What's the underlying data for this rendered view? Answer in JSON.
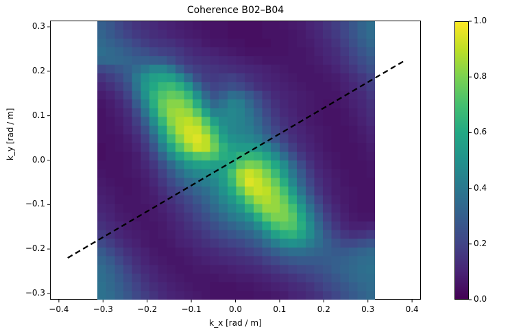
{
  "chart_data": {
    "type": "heatmap",
    "title": "Coherence B02–B04",
    "xlabel": "k_x [rad / m]",
    "ylabel": "k_y [rad / m]",
    "xlim": [
      -0.42,
      0.42
    ],
    "ylim": [
      -0.314,
      0.314
    ],
    "x_ticks": [
      "−0.4",
      "−0.3",
      "−0.2",
      "−0.1",
      "0.0",
      "0.1",
      "0.2",
      "0.3",
      "0.4"
    ],
    "x_tick_values": [
      -0.4,
      -0.3,
      -0.2,
      -0.1,
      0.0,
      0.1,
      0.2,
      0.3,
      0.4
    ],
    "y_ticks": [
      "0.3",
      "0.2",
      "0.1",
      "0.0",
      "−0.1",
      "−0.2",
      "−0.3"
    ],
    "y_tick_values": [
      0.3,
      0.2,
      0.1,
      0.0,
      -0.1,
      -0.2,
      -0.3
    ],
    "extent": [
      -0.314,
      0.314,
      -0.314,
      0.314
    ],
    "grid_size": [
      32,
      32
    ],
    "colormap": "viridis",
    "colorbar": {
      "range": [
        0.0,
        1.0
      ],
      "ticks": [
        "1.0",
        "0.8",
        "0.6",
        "0.4",
        "0.2",
        "0.0"
      ],
      "tick_values": [
        1.0,
        0.8,
        0.6,
        0.4,
        0.2,
        0.0
      ]
    },
    "line": {
      "style": "dashed",
      "color": "#000000",
      "x": [
        -0.38,
        0.38
      ],
      "y": [
        -0.22,
        0.222
      ]
    },
    "lobes": [
      {
        "center_kx": -0.065,
        "center_ky": 0.035,
        "peak": 0.95
      },
      {
        "center_kx": 0.06,
        "center_ky": -0.045,
        "peak": 0.93
      }
    ],
    "values_rows_top_to_bottom": [
      [
        0.3,
        0.27,
        0.22,
        0.18,
        0.15,
        0.13,
        0.12,
        0.1,
        0.09,
        0.08,
        0.07,
        0.06,
        0.05,
        0.05,
        0.05,
        0.04,
        0.04,
        0.04,
        0.04,
        0.05,
        0.05,
        0.06,
        0.07,
        0.08,
        0.1,
        0.12,
        0.15,
        0.18,
        0.22,
        0.27,
        0.32,
        0.36
      ],
      [
        0.32,
        0.28,
        0.24,
        0.2,
        0.17,
        0.15,
        0.13,
        0.12,
        0.1,
        0.09,
        0.08,
        0.07,
        0.06,
        0.05,
        0.05,
        0.04,
        0.04,
        0.04,
        0.04,
        0.05,
        0.05,
        0.05,
        0.06,
        0.07,
        0.09,
        0.11,
        0.14,
        0.17,
        0.21,
        0.26,
        0.31,
        0.35
      ],
      [
        0.34,
        0.31,
        0.28,
        0.25,
        0.21,
        0.18,
        0.16,
        0.15,
        0.14,
        0.12,
        0.1,
        0.09,
        0.07,
        0.06,
        0.06,
        0.05,
        0.05,
        0.04,
        0.04,
        0.04,
        0.05,
        0.05,
        0.06,
        0.07,
        0.08,
        0.1,
        0.12,
        0.15,
        0.19,
        0.24,
        0.29,
        0.33
      ],
      [
        0.36,
        0.34,
        0.32,
        0.29,
        0.26,
        0.24,
        0.21,
        0.19,
        0.18,
        0.16,
        0.13,
        0.11,
        0.1,
        0.09,
        0.08,
        0.07,
        0.06,
        0.05,
        0.05,
        0.05,
        0.05,
        0.05,
        0.06,
        0.06,
        0.07,
        0.09,
        0.11,
        0.13,
        0.17,
        0.21,
        0.26,
        0.3
      ],
      [
        0.33,
        0.34,
        0.33,
        0.32,
        0.3,
        0.3,
        0.29,
        0.28,
        0.24,
        0.19,
        0.16,
        0.14,
        0.13,
        0.12,
        0.11,
        0.1,
        0.09,
        0.08,
        0.07,
        0.06,
        0.06,
        0.06,
        0.06,
        0.06,
        0.07,
        0.08,
        0.1,
        0.12,
        0.15,
        0.19,
        0.23,
        0.27
      ],
      [
        0.22,
        0.24,
        0.27,
        0.3,
        0.35,
        0.4,
        0.45,
        0.45,
        0.4,
        0.3,
        0.22,
        0.18,
        0.16,
        0.15,
        0.14,
        0.13,
        0.12,
        0.11,
        0.1,
        0.09,
        0.08,
        0.07,
        0.06,
        0.06,
        0.06,
        0.07,
        0.08,
        0.1,
        0.13,
        0.16,
        0.2,
        0.24
      ],
      [
        0.15,
        0.18,
        0.22,
        0.28,
        0.4,
        0.5,
        0.56,
        0.58,
        0.56,
        0.48,
        0.36,
        0.24,
        0.18,
        0.17,
        0.18,
        0.19,
        0.17,
        0.14,
        0.12,
        0.1,
        0.09,
        0.08,
        0.07,
        0.06,
        0.06,
        0.06,
        0.07,
        0.08,
        0.1,
        0.13,
        0.16,
        0.2
      ],
      [
        0.11,
        0.14,
        0.18,
        0.24,
        0.38,
        0.52,
        0.6,
        0.66,
        0.68,
        0.63,
        0.52,
        0.36,
        0.24,
        0.2,
        0.22,
        0.24,
        0.22,
        0.18,
        0.14,
        0.12,
        0.1,
        0.09,
        0.08,
        0.07,
        0.06,
        0.06,
        0.06,
        0.07,
        0.09,
        0.11,
        0.14,
        0.18
      ],
      [
        0.08,
        0.1,
        0.14,
        0.2,
        0.34,
        0.5,
        0.64,
        0.72,
        0.76,
        0.74,
        0.66,
        0.5,
        0.34,
        0.26,
        0.3,
        0.36,
        0.34,
        0.28,
        0.22,
        0.16,
        0.12,
        0.1,
        0.09,
        0.08,
        0.07,
        0.06,
        0.06,
        0.06,
        0.08,
        0.1,
        0.12,
        0.16
      ],
      [
        0.06,
        0.08,
        0.11,
        0.16,
        0.28,
        0.44,
        0.62,
        0.76,
        0.82,
        0.82,
        0.76,
        0.62,
        0.44,
        0.34,
        0.38,
        0.44,
        0.42,
        0.34,
        0.26,
        0.19,
        0.14,
        0.11,
        0.09,
        0.08,
        0.07,
        0.06,
        0.05,
        0.06,
        0.07,
        0.09,
        0.11,
        0.14
      ],
      [
        0.05,
        0.07,
        0.09,
        0.13,
        0.22,
        0.38,
        0.56,
        0.74,
        0.84,
        0.86,
        0.84,
        0.74,
        0.58,
        0.44,
        0.44,
        0.46,
        0.44,
        0.38,
        0.3,
        0.22,
        0.16,
        0.12,
        0.1,
        0.08,
        0.07,
        0.06,
        0.05,
        0.05,
        0.06,
        0.08,
        0.1,
        0.13
      ],
      [
        0.05,
        0.06,
        0.08,
        0.11,
        0.18,
        0.3,
        0.48,
        0.66,
        0.82,
        0.88,
        0.9,
        0.86,
        0.72,
        0.56,
        0.48,
        0.46,
        0.44,
        0.4,
        0.33,
        0.25,
        0.18,
        0.14,
        0.11,
        0.09,
        0.07,
        0.06,
        0.05,
        0.05,
        0.06,
        0.07,
        0.09,
        0.12
      ],
      [
        0.05,
        0.06,
        0.07,
        0.1,
        0.15,
        0.24,
        0.4,
        0.58,
        0.76,
        0.88,
        0.93,
        0.92,
        0.82,
        0.66,
        0.52,
        0.46,
        0.44,
        0.42,
        0.36,
        0.28,
        0.21,
        0.16,
        0.12,
        0.1,
        0.08,
        0.07,
        0.06,
        0.05,
        0.05,
        0.06,
        0.08,
        0.1
      ],
      [
        0.05,
        0.05,
        0.06,
        0.08,
        0.12,
        0.19,
        0.32,
        0.5,
        0.68,
        0.82,
        0.92,
        0.95,
        0.9,
        0.74,
        0.58,
        0.5,
        0.48,
        0.46,
        0.42,
        0.34,
        0.26,
        0.19,
        0.14,
        0.11,
        0.09,
        0.07,
        0.06,
        0.05,
        0.05,
        0.06,
        0.07,
        0.09
      ],
      [
        0.04,
        0.05,
        0.06,
        0.07,
        0.1,
        0.16,
        0.26,
        0.42,
        0.58,
        0.72,
        0.84,
        0.92,
        0.9,
        0.78,
        0.64,
        0.56,
        0.54,
        0.54,
        0.52,
        0.46,
        0.36,
        0.26,
        0.18,
        0.13,
        0.1,
        0.08,
        0.06,
        0.05,
        0.05,
        0.05,
        0.06,
        0.08
      ],
      [
        0.04,
        0.05,
        0.05,
        0.06,
        0.08,
        0.13,
        0.2,
        0.32,
        0.46,
        0.58,
        0.66,
        0.72,
        0.74,
        0.7,
        0.62,
        0.6,
        0.64,
        0.66,
        0.64,
        0.58,
        0.48,
        0.36,
        0.25,
        0.17,
        0.12,
        0.09,
        0.07,
        0.06,
        0.05,
        0.05,
        0.06,
        0.07
      ],
      [
        0.05,
        0.05,
        0.05,
        0.06,
        0.08,
        0.11,
        0.16,
        0.24,
        0.34,
        0.44,
        0.52,
        0.56,
        0.58,
        0.56,
        0.56,
        0.62,
        0.74,
        0.8,
        0.78,
        0.7,
        0.6,
        0.48,
        0.34,
        0.23,
        0.15,
        0.1,
        0.08,
        0.06,
        0.05,
        0.05,
        0.05,
        0.06
      ],
      [
        0.06,
        0.05,
        0.05,
        0.06,
        0.07,
        0.09,
        0.13,
        0.19,
        0.27,
        0.35,
        0.42,
        0.46,
        0.48,
        0.5,
        0.56,
        0.7,
        0.86,
        0.92,
        0.88,
        0.8,
        0.68,
        0.54,
        0.4,
        0.28,
        0.18,
        0.12,
        0.09,
        0.07,
        0.06,
        0.05,
        0.05,
        0.06
      ],
      [
        0.07,
        0.06,
        0.05,
        0.05,
        0.06,
        0.08,
        0.11,
        0.16,
        0.22,
        0.28,
        0.34,
        0.38,
        0.42,
        0.46,
        0.54,
        0.66,
        0.84,
        0.95,
        0.92,
        0.86,
        0.76,
        0.62,
        0.46,
        0.32,
        0.21,
        0.14,
        0.1,
        0.08,
        0.06,
        0.05,
        0.05,
        0.05
      ],
      [
        0.08,
        0.07,
        0.06,
        0.05,
        0.06,
        0.07,
        0.09,
        0.13,
        0.18,
        0.22,
        0.27,
        0.32,
        0.36,
        0.42,
        0.5,
        0.6,
        0.74,
        0.88,
        0.92,
        0.9,
        0.82,
        0.7,
        0.54,
        0.38,
        0.25,
        0.16,
        0.11,
        0.08,
        0.07,
        0.06,
        0.05,
        0.05
      ],
      [
        0.09,
        0.08,
        0.06,
        0.06,
        0.06,
        0.07,
        0.08,
        0.11,
        0.14,
        0.18,
        0.22,
        0.27,
        0.32,
        0.38,
        0.45,
        0.52,
        0.62,
        0.76,
        0.86,
        0.88,
        0.84,
        0.76,
        0.62,
        0.46,
        0.31,
        0.2,
        0.13,
        0.09,
        0.07,
        0.06,
        0.05,
        0.05
      ],
      [
        0.1,
        0.09,
        0.07,
        0.06,
        0.06,
        0.06,
        0.07,
        0.09,
        0.12,
        0.15,
        0.19,
        0.23,
        0.28,
        0.34,
        0.4,
        0.46,
        0.52,
        0.64,
        0.76,
        0.84,
        0.84,
        0.8,
        0.7,
        0.54,
        0.38,
        0.25,
        0.16,
        0.11,
        0.08,
        0.06,
        0.05,
        0.05
      ],
      [
        0.12,
        0.1,
        0.08,
        0.07,
        0.06,
        0.06,
        0.07,
        0.08,
        0.1,
        0.13,
        0.16,
        0.2,
        0.24,
        0.29,
        0.34,
        0.4,
        0.44,
        0.5,
        0.62,
        0.74,
        0.8,
        0.8,
        0.74,
        0.6,
        0.44,
        0.3,
        0.19,
        0.13,
        0.09,
        0.07,
        0.06,
        0.06
      ],
      [
        0.14,
        0.12,
        0.1,
        0.08,
        0.07,
        0.06,
        0.06,
        0.07,
        0.09,
        0.11,
        0.14,
        0.17,
        0.2,
        0.24,
        0.28,
        0.32,
        0.36,
        0.4,
        0.48,
        0.6,
        0.7,
        0.74,
        0.72,
        0.62,
        0.48,
        0.34,
        0.23,
        0.16,
        0.11,
        0.09,
        0.09,
        0.1
      ],
      [
        0.17,
        0.14,
        0.11,
        0.09,
        0.08,
        0.07,
        0.06,
        0.07,
        0.08,
        0.1,
        0.12,
        0.14,
        0.17,
        0.2,
        0.23,
        0.26,
        0.29,
        0.32,
        0.37,
        0.46,
        0.56,
        0.62,
        0.64,
        0.58,
        0.48,
        0.37,
        0.27,
        0.2,
        0.16,
        0.14,
        0.15,
        0.17
      ],
      [
        0.22,
        0.18,
        0.14,
        0.11,
        0.09,
        0.07,
        0.06,
        0.06,
        0.07,
        0.09,
        0.1,
        0.12,
        0.14,
        0.16,
        0.18,
        0.2,
        0.22,
        0.25,
        0.29,
        0.35,
        0.42,
        0.48,
        0.5,
        0.48,
        0.42,
        0.36,
        0.3,
        0.25,
        0.22,
        0.22,
        0.24,
        0.26
      ],
      [
        0.28,
        0.23,
        0.18,
        0.14,
        0.11,
        0.09,
        0.07,
        0.06,
        0.06,
        0.07,
        0.08,
        0.1,
        0.11,
        0.12,
        0.14,
        0.15,
        0.17,
        0.19,
        0.22,
        0.26,
        0.3,
        0.34,
        0.36,
        0.36,
        0.34,
        0.32,
        0.3,
        0.28,
        0.28,
        0.3,
        0.32,
        0.34
      ],
      [
        0.32,
        0.28,
        0.22,
        0.17,
        0.13,
        0.1,
        0.08,
        0.07,
        0.06,
        0.06,
        0.07,
        0.08,
        0.09,
        0.1,
        0.11,
        0.12,
        0.13,
        0.14,
        0.16,
        0.19,
        0.22,
        0.25,
        0.27,
        0.28,
        0.28,
        0.28,
        0.29,
        0.3,
        0.31,
        0.33,
        0.35,
        0.36
      ],
      [
        0.35,
        0.31,
        0.26,
        0.2,
        0.15,
        0.12,
        0.1,
        0.08,
        0.07,
        0.06,
        0.06,
        0.07,
        0.07,
        0.08,
        0.08,
        0.09,
        0.1,
        0.11,
        0.12,
        0.14,
        0.16,
        0.18,
        0.2,
        0.22,
        0.23,
        0.25,
        0.27,
        0.3,
        0.32,
        0.34,
        0.36,
        0.37
      ],
      [
        0.36,
        0.33,
        0.28,
        0.23,
        0.18,
        0.14,
        0.11,
        0.09,
        0.08,
        0.07,
        0.06,
        0.06,
        0.06,
        0.06,
        0.07,
        0.07,
        0.08,
        0.08,
        0.09,
        0.1,
        0.12,
        0.13,
        0.15,
        0.17,
        0.19,
        0.21,
        0.24,
        0.27,
        0.3,
        0.33,
        0.35,
        0.36
      ],
      [
        0.37,
        0.34,
        0.3,
        0.25,
        0.2,
        0.16,
        0.13,
        0.11,
        0.09,
        0.08,
        0.07,
        0.06,
        0.06,
        0.05,
        0.05,
        0.05,
        0.06,
        0.06,
        0.07,
        0.08,
        0.09,
        0.1,
        0.12,
        0.13,
        0.15,
        0.18,
        0.21,
        0.24,
        0.27,
        0.3,
        0.33,
        0.35
      ],
      [
        0.37,
        0.35,
        0.31,
        0.27,
        0.22,
        0.18,
        0.15,
        0.12,
        0.1,
        0.09,
        0.08,
        0.07,
        0.06,
        0.05,
        0.05,
        0.05,
        0.05,
        0.05,
        0.06,
        0.06,
        0.07,
        0.08,
        0.1,
        0.11,
        0.13,
        0.15,
        0.18,
        0.21,
        0.25,
        0.28,
        0.31,
        0.34
      ]
    ]
  }
}
